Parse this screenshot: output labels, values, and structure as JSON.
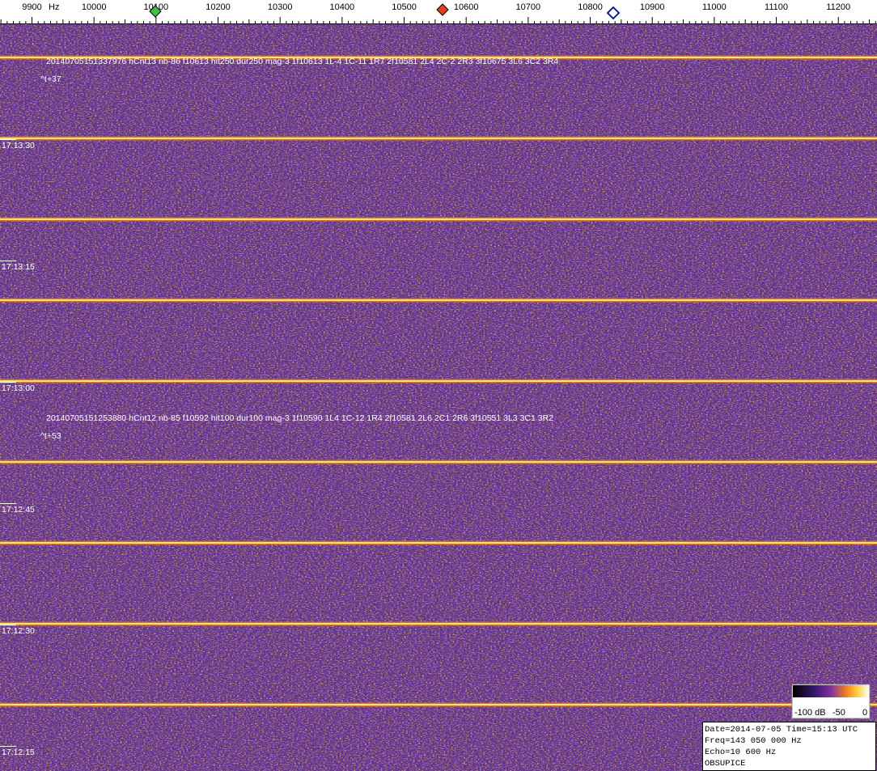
{
  "freq_axis": {
    "unit": "Hz",
    "ticks": [
      "9900",
      "10000",
      "10100",
      "10200",
      "10300",
      "10400",
      "10500",
      "10600",
      "10700",
      "10800",
      "10900",
      "11000",
      "11100",
      "11200"
    ]
  },
  "time_labels": [
    "17:13:30",
    "17:13:15",
    "17:13:00",
    "17:12:45",
    "17:12:30",
    "17:12:15"
  ],
  "detections": [
    {
      "text": "20140705151337976 hCnt13 nb-86 f10613 hit250 dur250 mag-3 1f10613 1L-4 1C-11 1R7 2f10581 2L4 2C-2 2R3 3f10675 3L6 3C2 3R4",
      "offset": "^t+37"
    },
    {
      "text": "20140705151253880 hCnt12 nb-85 f10592 hit100 dur100 mag-3 1f10590 1L4 1C-12 1R4 2f10581 2L6 2C1 2R6 3f10551 3L3 3C1 3R2",
      "offset": "^t+53"
    }
  ],
  "colorbar": {
    "labels": [
      "-100 dB",
      "-50",
      "0"
    ]
  },
  "info": [
    "Date=2014-07-05 Time=15:13 UTC",
    "Freq=143 050 000 Hz",
    "Echo=10 600 Hz",
    "OBSUPICE"
  ]
}
